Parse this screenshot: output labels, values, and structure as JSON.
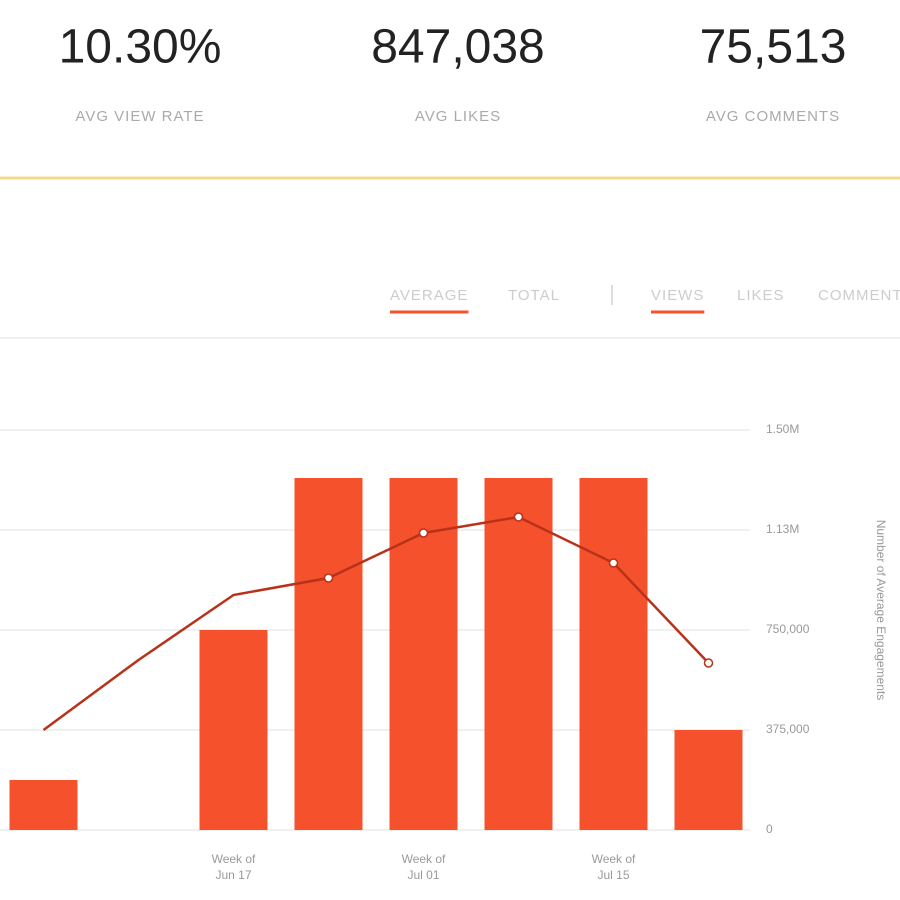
{
  "stats": [
    {
      "value": "10.30%",
      "label": "AVG VIEW RATE"
    },
    {
      "value": "847,038",
      "label": "AVG LIKES"
    },
    {
      "value": "75,513",
      "label": "AVG COMMENTS"
    }
  ],
  "tabs": {
    "mode": [
      "AVERAGE",
      "TOTAL"
    ],
    "active_mode": 0,
    "metric": [
      "VIEWS",
      "LIKES",
      "COMMENTS"
    ],
    "active_metric": 0
  },
  "chart_data": {
    "type": "bar",
    "categories": [
      null,
      null,
      "Week of Jun 17",
      null,
      "Week of Jul 01",
      null,
      "Week of Jul 15",
      null
    ],
    "series": [
      {
        "type": "bar",
        "color": "#f4512c",
        "values": [
          187500,
          null,
          750000,
          1320000,
          1320000,
          1320000,
          1320000,
          375000
        ]
      },
      {
        "type": "line",
        "color": "#b8321a",
        "values": [
          375000,
          637500,
          881250,
          945000,
          1113750,
          1173750,
          1001250,
          626250
        ]
      }
    ],
    "y_axis_label": "Number of Average Engagements",
    "ylim": [
      0,
      1500000
    ],
    "yticks": [
      0,
      {
        "value": 375000,
        "label": "375,000"
      },
      {
        "value": 750000,
        "label": "750,000"
      },
      {
        "value": 1125000,
        "label": "1.13M"
      },
      {
        "value": 1500000,
        "label": "1.50M"
      }
    ],
    "grid": true
  }
}
